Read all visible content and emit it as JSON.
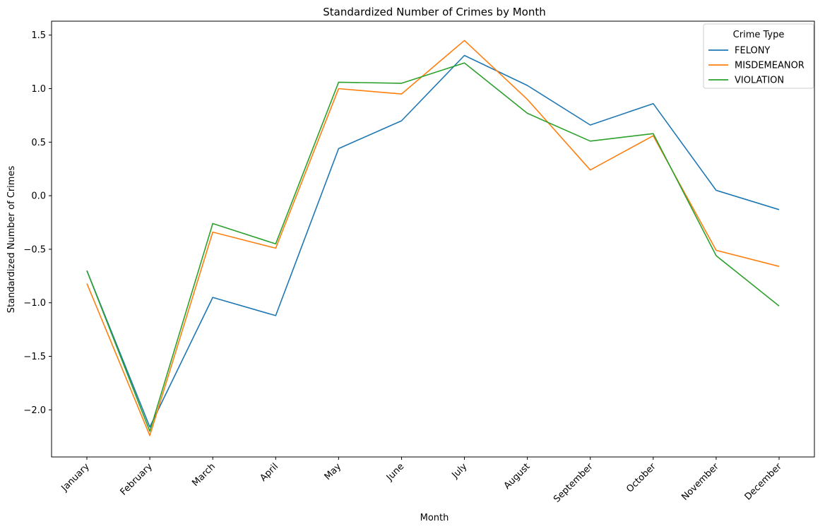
{
  "chart_data": {
    "type": "line",
    "title": "Standardized Number of Crimes by Month",
    "xlabel": "Month",
    "ylabel": "Standardized Number of Crimes",
    "categories": [
      "January",
      "February",
      "March",
      "April",
      "May",
      "June",
      "July",
      "August",
      "September",
      "October",
      "November",
      "December"
    ],
    "ylim": [
      -2.44,
      1.63
    ],
    "yticks": [
      -2.0,
      -1.5,
      -1.0,
      -0.5,
      0.0,
      0.5,
      1.0,
      1.5
    ],
    "ytick_labels": [
      "−2.0",
      "−1.5",
      "−1.0",
      "−0.5",
      "0.0",
      "0.5",
      "1.0",
      "1.5"
    ],
    "grid": false,
    "legend": {
      "title": "Crime Type",
      "placement": "top-right"
    },
    "series": [
      {
        "name": "FELONY",
        "color": "#1f77b4",
        "values": [
          -0.7,
          -2.16,
          -0.95,
          -1.12,
          0.44,
          0.7,
          1.31,
          1.03,
          0.66,
          0.86,
          0.05,
          -0.13
        ]
      },
      {
        "name": "MISDEMEANOR",
        "color": "#ff7f0e",
        "values": [
          -0.82,
          -2.24,
          -0.34,
          -0.49,
          1.0,
          0.95,
          1.45,
          0.9,
          0.24,
          0.56,
          -0.51,
          -0.66
        ]
      },
      {
        "name": "VIOLATION",
        "color": "#2ca02c",
        "values": [
          -0.7,
          -2.2,
          -0.26,
          -0.45,
          1.06,
          1.05,
          1.24,
          0.77,
          0.51,
          0.58,
          -0.56,
          -1.03
        ]
      }
    ]
  }
}
